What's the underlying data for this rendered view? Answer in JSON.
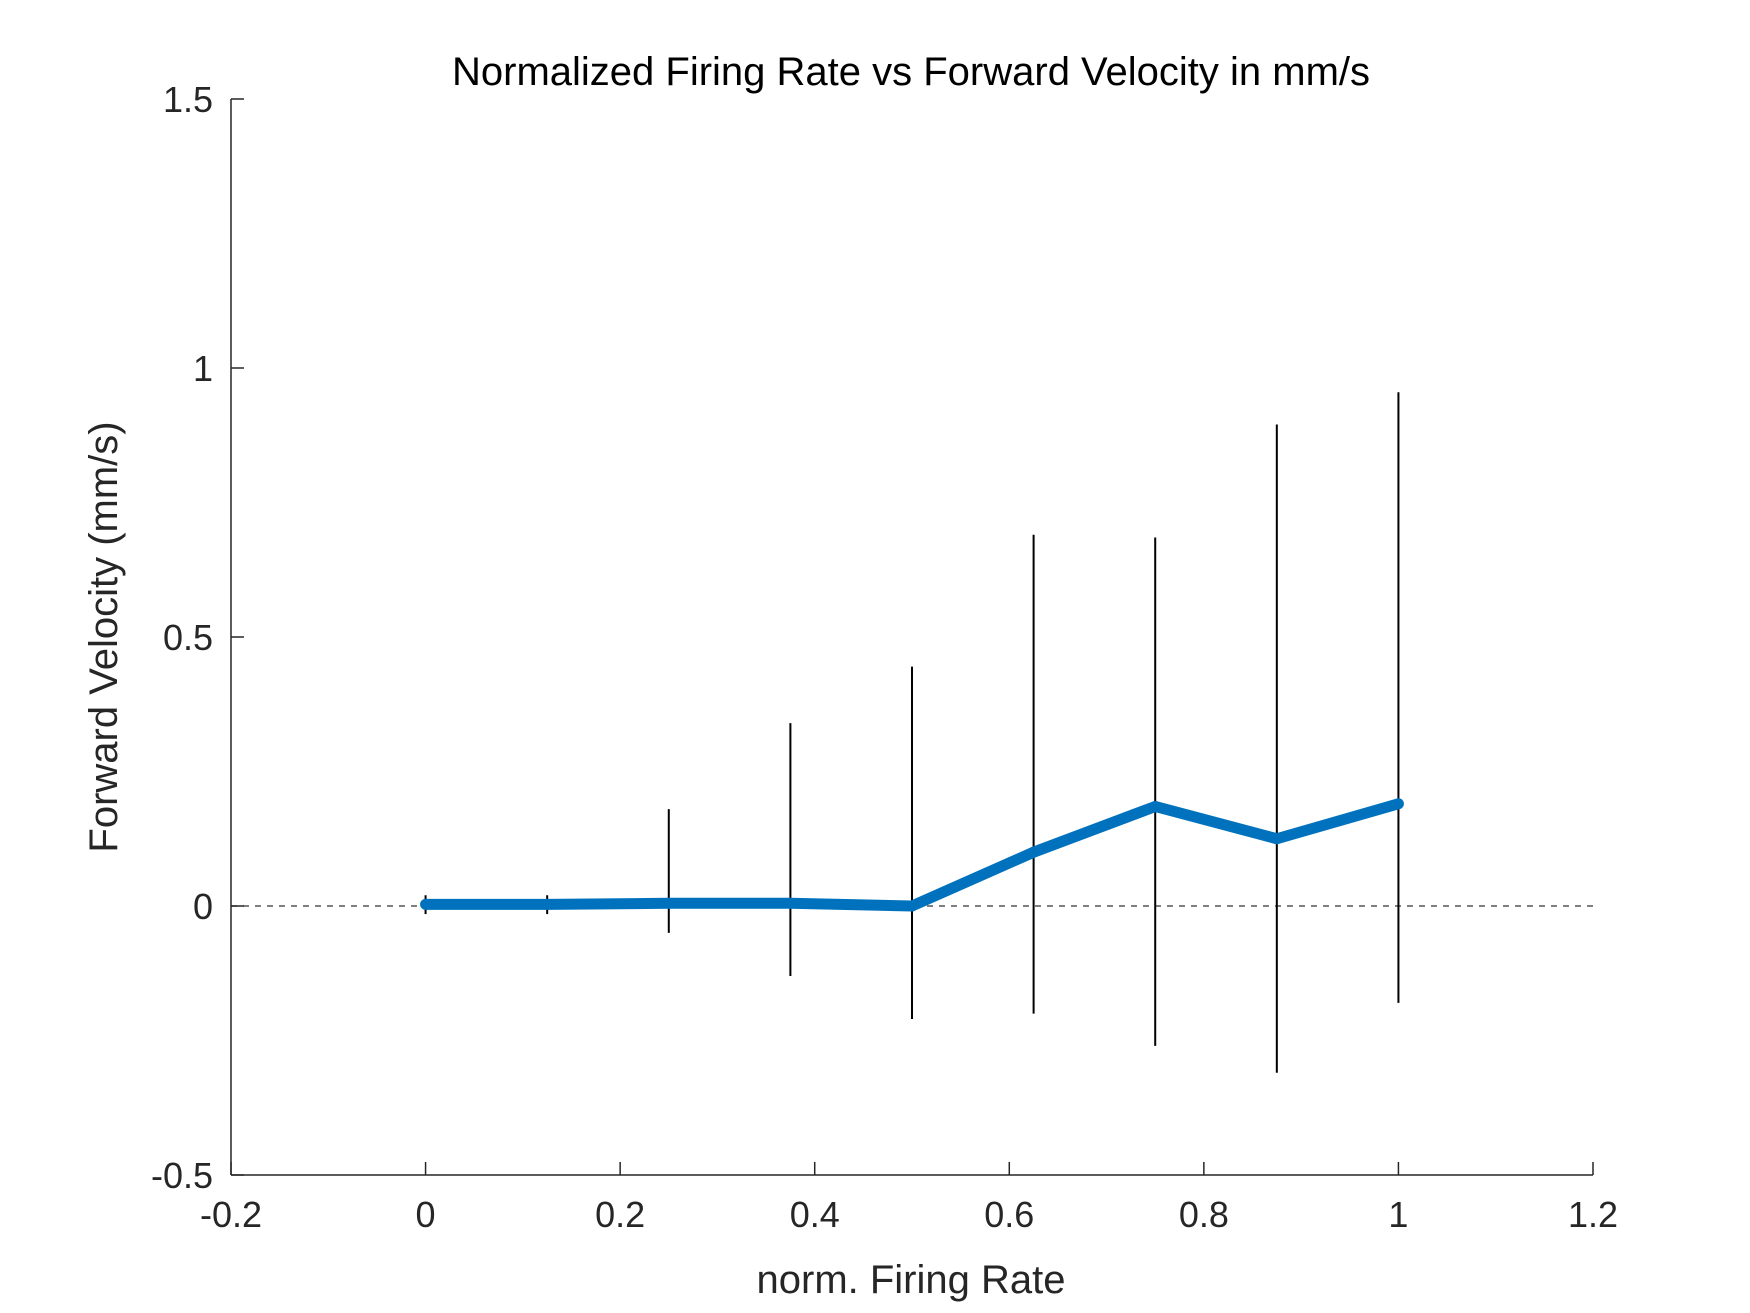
{
  "chart_data": {
    "type": "line",
    "title": "Normalized Firing Rate vs Forward Velocity in mm/s",
    "xlabel": "norm. Firing Rate",
    "ylabel": "Forward Velocity (mm/s)",
    "xlim": [
      -0.2,
      1.2
    ],
    "ylim": [
      -0.5,
      1.5
    ],
    "xticks": [
      -0.2,
      0,
      0.2,
      0.4,
      0.6,
      0.8,
      1,
      1.2
    ],
    "xtick_labels": [
      "-0.2",
      "0",
      "0.2",
      "0.4",
      "0.6",
      "0.8",
      "1",
      "1.2"
    ],
    "yticks": [
      -0.5,
      0,
      0.5,
      1,
      1.5
    ],
    "ytick_labels": [
      "-0.5",
      "0",
      "0.5",
      "1",
      "1.5"
    ],
    "grid": false,
    "reference_line": {
      "y": 0,
      "style": "dashed",
      "color": "#555555"
    },
    "series": [
      {
        "x": [
          0,
          0.125,
          0.25,
          0.375,
          0.5,
          0.625,
          0.75,
          0.875,
          1.0
        ],
        "y": [
          0.003,
          0.003,
          0.005,
          0.005,
          0.0,
          0.1,
          0.185,
          0.125,
          0.19
        ],
        "error_low": [
          -0.015,
          -0.015,
          -0.05,
          -0.13,
          -0.21,
          -0.2,
          -0.26,
          -0.31,
          -0.18
        ],
        "error_high": [
          0.02,
          0.02,
          0.18,
          0.34,
          0.445,
          0.69,
          0.685,
          0.895,
          0.955
        ],
        "color": "#0072BD",
        "errorbar_color": "#000000"
      }
    ]
  },
  "colors": {
    "line": "#0072BD",
    "axes": "#262626",
    "errorbar": "#000000"
  }
}
